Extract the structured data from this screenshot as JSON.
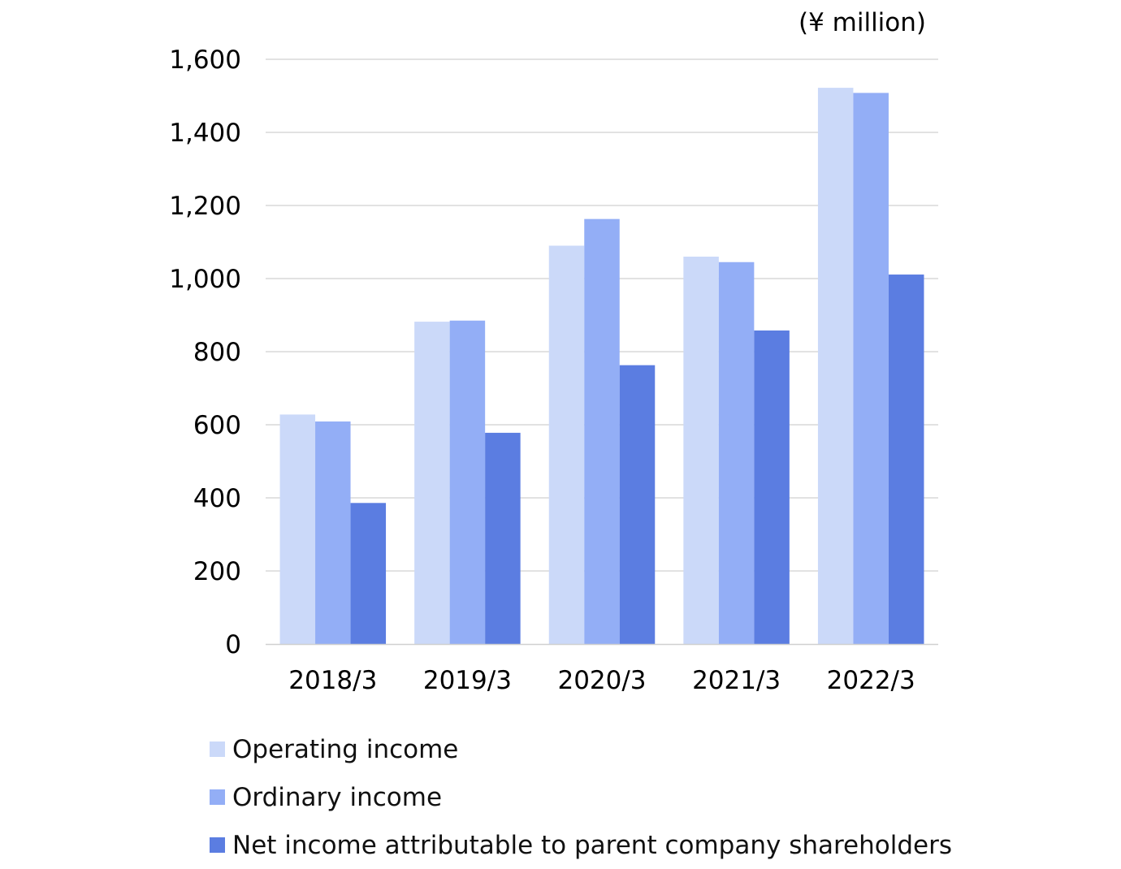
{
  "chart_data": {
    "type": "bar",
    "unit_label": "(¥ million)",
    "categories": [
      "2018/3",
      "2019/3",
      "2020/3",
      "2021/3",
      "2022/3"
    ],
    "series": [
      {
        "name": "Operating income",
        "color": "#cbd9f9",
        "values": [
          628,
          882,
          1090,
          1060,
          1522
        ]
      },
      {
        "name": "Ordinary income",
        "color": "#93aef6",
        "values": [
          609,
          885,
          1163,
          1045,
          1508
        ]
      },
      {
        "name": "Net income attributable to parent company shareholders",
        "color": "#5b7de1",
        "values": [
          386,
          578,
          763,
          858,
          1011
        ]
      }
    ],
    "ylim": [
      0,
      1600
    ],
    "yticks": [
      "0",
      "200",
      "400",
      "600",
      "800",
      "1,000",
      "1,200",
      "1,400",
      "1,600"
    ],
    "grid": true,
    "legend_position": "bottom-left"
  }
}
